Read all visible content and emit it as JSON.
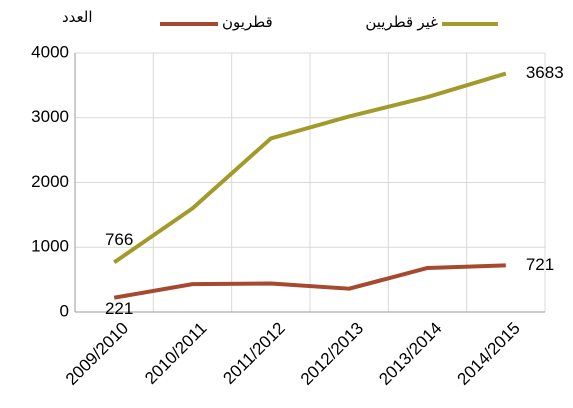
{
  "chart_data": {
    "type": "line",
    "ylabel": "العدد",
    "categories": [
      "2009/2010",
      "2010/2011",
      "2011/2012",
      "2012/2013",
      "2013/2014",
      "2014/2015"
    ],
    "series": [
      {
        "name": "قطريون",
        "color": "#a6492f",
        "values": [
          221,
          430,
          440,
          360,
          680,
          721
        ],
        "value_labels": [
          "221",
          null,
          null,
          null,
          null,
          "721"
        ]
      },
      {
        "name": "غير قطريين",
        "color": "#a39a2c",
        "values": [
          766,
          1600,
          2680,
          3020,
          3320,
          3683
        ],
        "value_labels": [
          "766",
          null,
          null,
          null,
          null,
          "3683"
        ]
      }
    ],
    "ylim": [
      0,
      4000
    ],
    "yticks": [
      0,
      1000,
      2000,
      3000,
      4000
    ],
    "grid": true
  }
}
